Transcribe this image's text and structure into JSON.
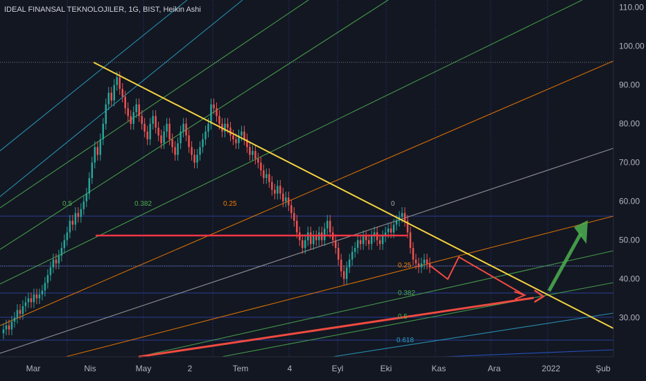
{
  "header": {
    "title": "IDEAL FINANSAL TEKNOLOJILER, 1G, BIST, Heikin Ashi"
  },
  "chart_data": {
    "type": "candlestick",
    "title": "IDEAL FINANSAL TEKNOLOJILER, 1G, BIST, Heikin Ashi",
    "ylim": [
      22,
      112
    ],
    "y_ticks": [
      "30.00",
      "40.00",
      "50.00",
      "60.00",
      "70.00",
      "80.00",
      "90.00",
      "100.00",
      "110.00"
    ],
    "x_ticks": [
      "Mar",
      "Nis",
      "May",
      "2",
      "Tem",
      "4",
      "Eyl",
      "Eki",
      "Kas",
      "Ara",
      "2022",
      "Şub"
    ],
    "grid": true,
    "up_color": "#26a69a",
    "down_color": "#ef5350",
    "fan_labels": [
      "0",
      "0.5",
      "0.382",
      "0.25",
      "0.25",
      "0.382",
      "0.5",
      "0.618"
    ],
    "series": [
      {
        "values": [
          27,
          28,
          27,
          29,
          30,
          32,
          31,
          33,
          34,
          35,
          34,
          36,
          35,
          36,
          37,
          39,
          41,
          43,
          45,
          44,
          46,
          48,
          50,
          52,
          55,
          54,
          57,
          56,
          58,
          60,
          62,
          66,
          70,
          74,
          72,
          76,
          80,
          85,
          88,
          86,
          90,
          92,
          89,
          87,
          84,
          82,
          80,
          83,
          85,
          82,
          80,
          78,
          76,
          80,
          82,
          79,
          77,
          75,
          78,
          80,
          76,
          74,
          72,
          75,
          78,
          80,
          77,
          74,
          72,
          70,
          72,
          74,
          76,
          78,
          80,
          85,
          84,
          82,
          80,
          78,
          80,
          79,
          77,
          76,
          75,
          77,
          78,
          76,
          74,
          72,
          73,
          71,
          70,
          68,
          66,
          67,
          65,
          63,
          62,
          64,
          62,
          60,
          61,
          59,
          57,
          55,
          52,
          50,
          48,
          50,
          52,
          49,
          51,
          50,
          52,
          50,
          53,
          55,
          52,
          50,
          48,
          45,
          42,
          40,
          43,
          45,
          47,
          48,
          50,
          49,
          51,
          50,
          49,
          51,
          52,
          50,
          49,
          51,
          52,
          53,
          52,
          54,
          55,
          56,
          57,
          55,
          52,
          48,
          45,
          44,
          43,
          44,
          45,
          44,
          43
        ]
      }
    ]
  },
  "colors": {
    "background": "#131722",
    "downtrend_line": "#f5d33f",
    "horizontal_level": "#f23645",
    "support_line": "#f04a40",
    "green_arrow": "#4caf50"
  }
}
